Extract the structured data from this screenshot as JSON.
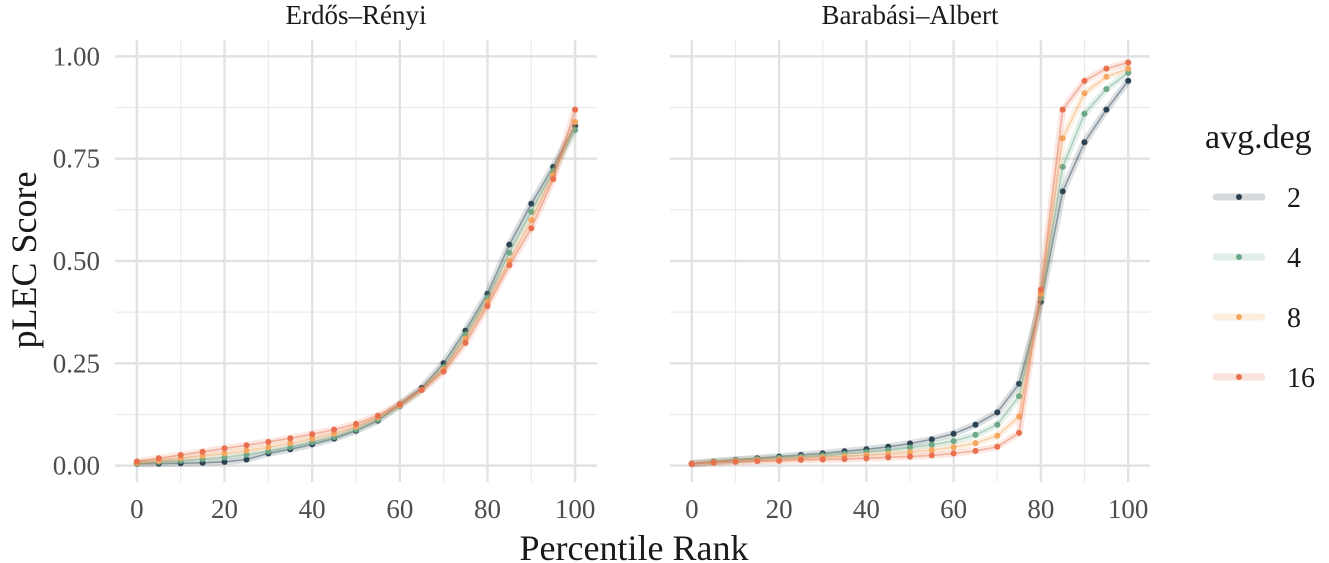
{
  "chart_data": {
    "type": "line",
    "xlabel": "Percentile Rank",
    "ylabel": "pLEC Score",
    "xlim": [
      -5,
      105
    ],
    "ylim": [
      -0.04,
      1.04
    ],
    "xticks": [
      "0",
      "20",
      "40",
      "60",
      "80",
      "100"
    ],
    "yticks": [
      "0.00",
      "0.25",
      "0.50",
      "0.75",
      "1.00"
    ],
    "grid": true,
    "legend": {
      "title": "avg.deg",
      "position": "right"
    },
    "x": [
      0,
      5,
      10,
      15,
      20,
      25,
      30,
      35,
      40,
      45,
      50,
      55,
      60,
      65,
      70,
      75,
      80,
      85,
      90,
      95,
      100
    ],
    "panels": [
      {
        "title": "Erdős–Rényi",
        "series": [
          {
            "name": "2",
            "color": "#2b4050",
            "values": [
              0.005,
              0.005,
              0.006,
              0.007,
              0.009,
              0.015,
              0.03,
              0.04,
              0.052,
              0.066,
              0.085,
              0.11,
              0.15,
              0.19,
              0.25,
              0.33,
              0.42,
              0.54,
              0.64,
              0.73,
              0.83
            ]
          },
          {
            "name": "4",
            "color": "#6aa888",
            "values": [
              0.006,
              0.009,
              0.012,
              0.016,
              0.02,
              0.027,
              0.035,
              0.045,
              0.057,
              0.07,
              0.088,
              0.112,
              0.145,
              0.185,
              0.24,
              0.32,
              0.41,
              0.52,
              0.62,
              0.72,
              0.82
            ]
          },
          {
            "name": "8",
            "color": "#f4a860",
            "values": [
              0.007,
              0.012,
              0.018,
              0.024,
              0.03,
              0.037,
              0.045,
              0.055,
              0.066,
              0.078,
              0.095,
              0.118,
              0.148,
              0.185,
              0.235,
              0.31,
              0.4,
              0.5,
              0.6,
              0.71,
              0.84
            ]
          },
          {
            "name": "16",
            "color": "#e8704e",
            "values": [
              0.01,
              0.018,
              0.026,
              0.034,
              0.042,
              0.05,
              0.058,
              0.067,
              0.077,
              0.088,
              0.102,
              0.122,
              0.15,
              0.185,
              0.23,
              0.3,
              0.39,
              0.49,
              0.58,
              0.7,
              0.87
            ]
          }
        ]
      },
      {
        "title": "Barabási–Albert",
        "series": [
          {
            "name": "2",
            "color": "#2b4050",
            "values": [
              0.005,
              0.01,
              0.014,
              0.018,
              0.022,
              0.026,
              0.03,
              0.035,
              0.04,
              0.046,
              0.054,
              0.064,
              0.078,
              0.1,
              0.13,
              0.2,
              0.4,
              0.67,
              0.79,
              0.87,
              0.94
            ]
          },
          {
            "name": "4",
            "color": "#6aa888",
            "values": [
              0.005,
              0.009,
              0.013,
              0.016,
              0.019,
              0.022,
              0.025,
              0.029,
              0.033,
              0.038,
              0.044,
              0.051,
              0.06,
              0.075,
              0.1,
              0.17,
              0.41,
              0.73,
              0.86,
              0.92,
              0.96
            ]
          },
          {
            "name": "8",
            "color": "#f4a860",
            "values": [
              0.005,
              0.008,
              0.011,
              0.013,
              0.015,
              0.018,
              0.02,
              0.023,
              0.026,
              0.029,
              0.033,
              0.038,
              0.045,
              0.055,
              0.073,
              0.12,
              0.42,
              0.8,
              0.91,
              0.95,
              0.97
            ]
          },
          {
            "name": "16",
            "color": "#e8704e",
            "values": [
              0.004,
              0.007,
              0.009,
              0.011,
              0.012,
              0.014,
              0.015,
              0.016,
              0.018,
              0.02,
              0.022,
              0.025,
              0.03,
              0.036,
              0.046,
              0.08,
              0.43,
              0.87,
              0.94,
              0.97,
              0.985
            ]
          }
        ]
      }
    ]
  }
}
